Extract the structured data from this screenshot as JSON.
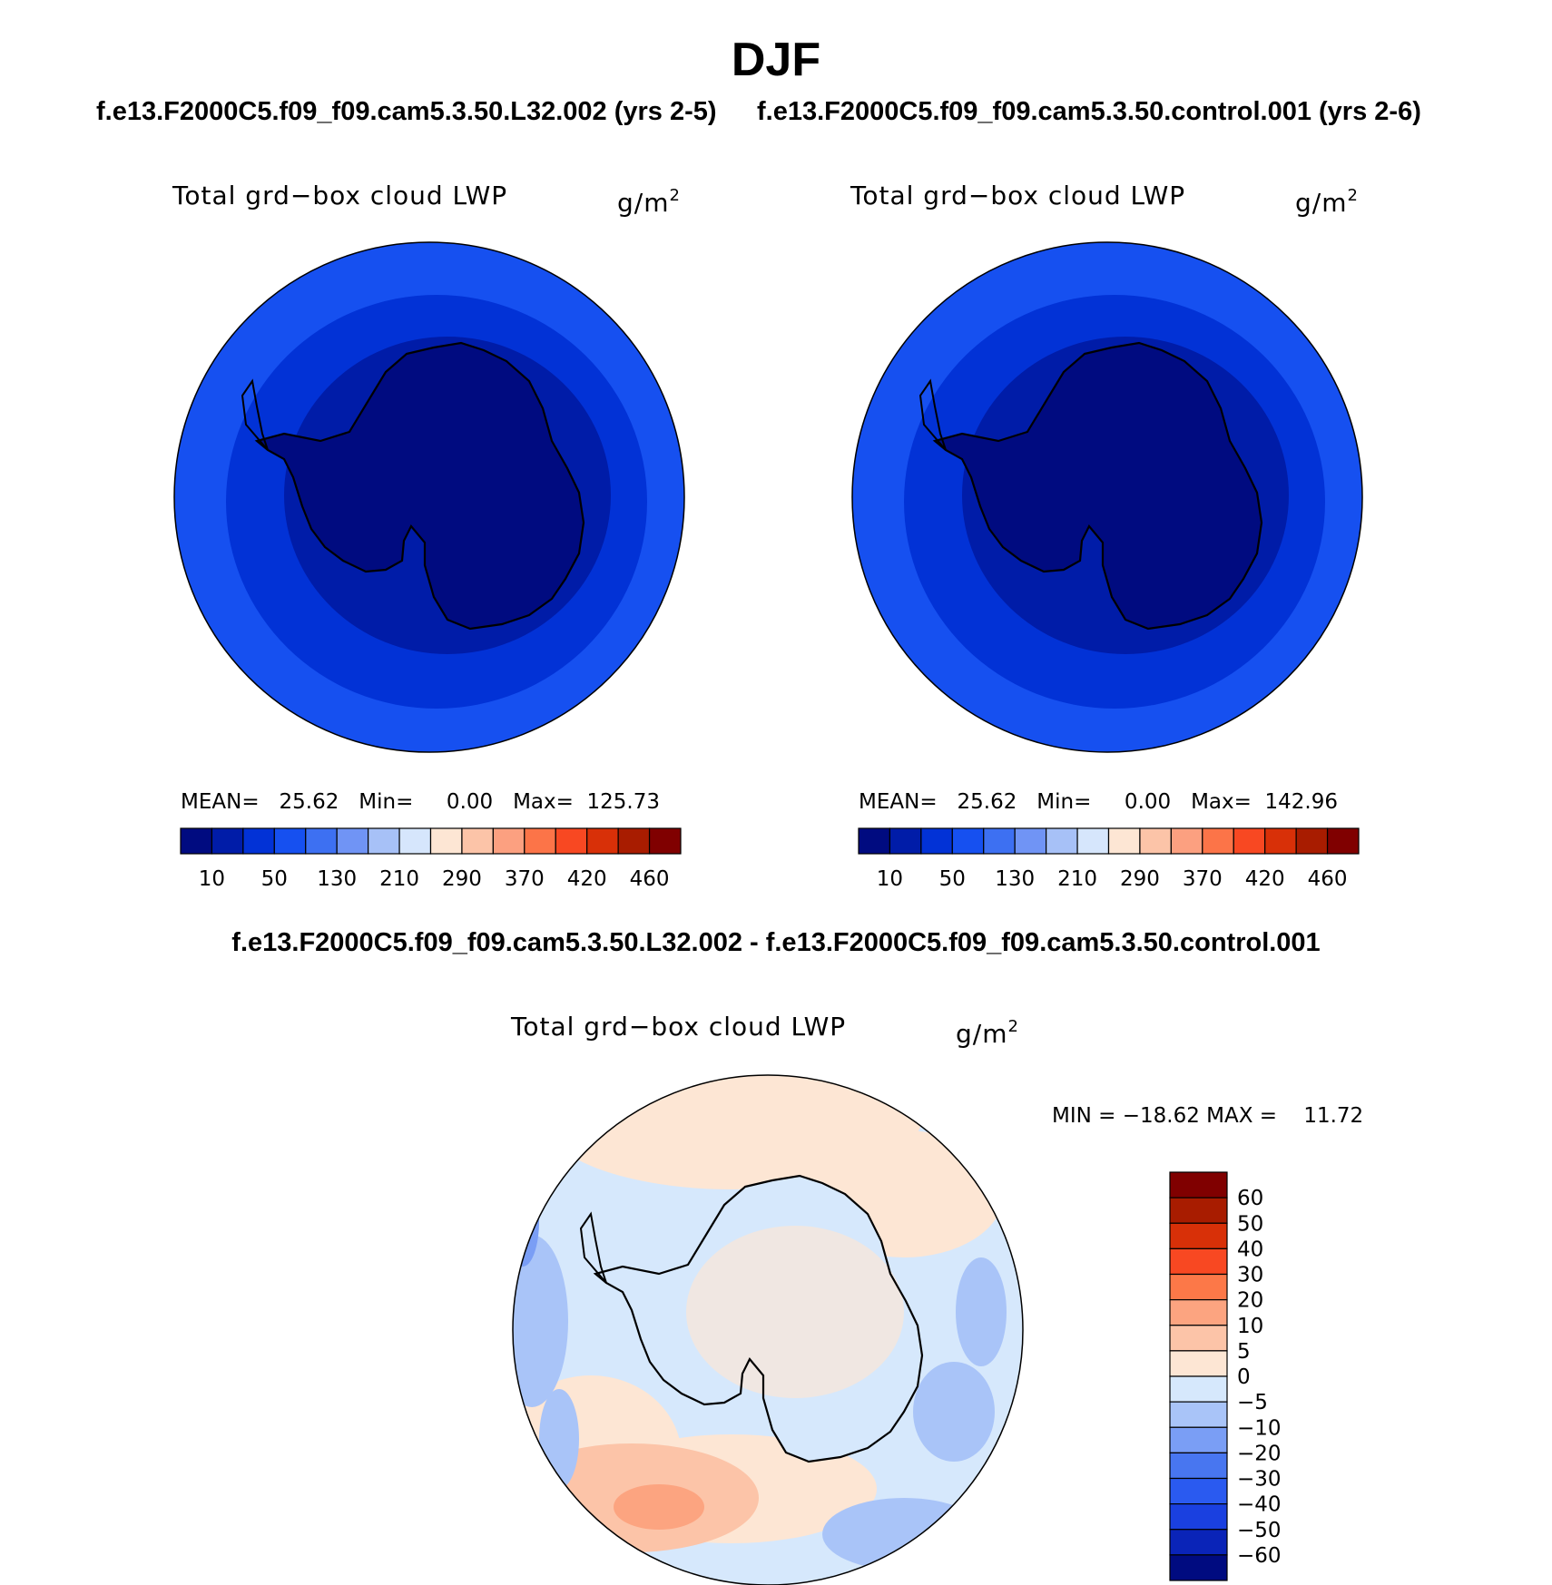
{
  "figure": {
    "season": "DJF",
    "case_left": "f.e13.F2000C5.f09_f09.cam5.3.50.L32.002 (yrs 2-5)",
    "case_right": "f.e13.F2000C5.f09_f09.cam5.3.50.control.001 (yrs 2-6)",
    "diff_title": "f.e13.F2000C5.f09_f09.cam5.3.50.L32.002 - f.e13.F2000C5.f09_f09.cam5.3.50.control.001"
  },
  "panels": {
    "left": {
      "variable": "Total grd−box cloud LWP",
      "units_base": "g/m",
      "units_exp": "2",
      "stats": "MEAN=   25.62   Min=     0.00   Max=  125.73"
    },
    "right": {
      "variable": "Total grd−box cloud LWP",
      "units_base": "g/m",
      "units_exp": "2",
      "stats": "MEAN=   25.62   Min=     0.00   Max=  142.96"
    },
    "diff": {
      "variable": "Total grd−box cloud LWP",
      "units_base": "g/m",
      "units_exp": "2",
      "stats": "MIN = −18.62 MAX =    11.72"
    }
  },
  "colors": {
    "abs_scale": [
      "#000b80",
      "#001ca8",
      "#0232d6",
      "#1650f0",
      "#3d70f2",
      "#7094f5",
      "#a7c1f7",
      "#d6e6fc",
      "#fde6d4",
      "#fcc4a8",
      "#fca080",
      "#fc7448",
      "#f84822",
      "#d83008",
      "#a81c00",
      "#800000"
    ],
    "diff_scale": [
      "#000b80",
      "#0a24b8",
      "#1a40e0",
      "#2a5af0",
      "#4876f0",
      "#7a9ef5",
      "#a9c4f8",
      "#d6e8fc",
      "#fde6d4",
      "#fcc4a8",
      "#fca480",
      "#fc7848",
      "#f84822",
      "#d83008",
      "#a81c00",
      "#800000"
    ]
  },
  "chart_data": [
    {
      "type": "heatmap",
      "projection": "south polar stereographic",
      "title": "Total grd−box cloud LWP",
      "units": "g/m2",
      "case": "f.e13.F2000C5.f09_f09.cam5.3.50.L32.002 (yrs 2-5)",
      "mean": 25.62,
      "min": 0.0,
      "max": 125.73,
      "colorbar_ticks": [
        "10",
        "50",
        "130",
        "210",
        "290",
        "370",
        "420",
        "460"
      ],
      "contour_levels": [
        10,
        30,
        50,
        90,
        130,
        170,
        210,
        250,
        290,
        330,
        370,
        400,
        420,
        440,
        460
      ]
    },
    {
      "type": "heatmap",
      "projection": "south polar stereographic",
      "title": "Total grd−box cloud LWP",
      "units": "g/m2",
      "case": "f.e13.F2000C5.f09_f09.cam5.3.50.control.001 (yrs 2-6)",
      "mean": 25.62,
      "min": 0.0,
      "max": 142.96,
      "colorbar_ticks": [
        "10",
        "50",
        "130",
        "210",
        "290",
        "370",
        "420",
        "460"
      ],
      "contour_levels": [
        10,
        30,
        50,
        90,
        130,
        170,
        210,
        250,
        290,
        330,
        370,
        400,
        420,
        440,
        460
      ]
    },
    {
      "type": "heatmap",
      "projection": "south polar stereographic",
      "title": "Total grd−box cloud LWP",
      "units": "g/m2",
      "case": "f.e13.F2000C5.f09_f09.cam5.3.50.L32.002 - f.e13.F2000C5.f09_f09.cam5.3.50.control.001",
      "min": -18.62,
      "max": 11.72,
      "colorbar_ticks": [
        "60",
        "50",
        "40",
        "30",
        "20",
        "10",
        "5",
        "0",
        "−5",
        "−10",
        "−20",
        "−30",
        "−40",
        "−50",
        "−60"
      ]
    }
  ]
}
